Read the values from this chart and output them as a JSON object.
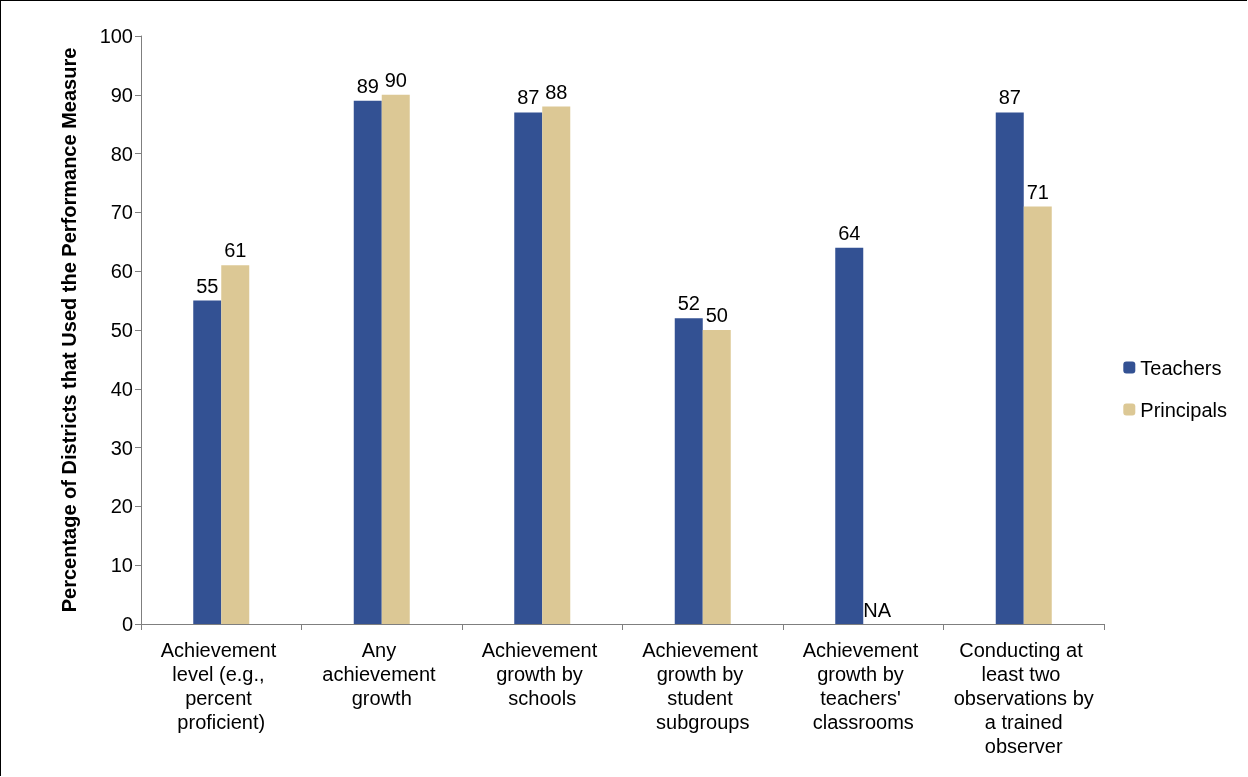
{
  "chart_data": {
    "type": "bar",
    "ylabel": "Percentage of Districts that Used the Performance Measure",
    "categories": [
      "Achievement level (e.g., percent proficient)",
      "Any achievement growth",
      "Achievement growth by schools",
      "Achievement growth by student subgroups",
      "Achievement growth by teachers' classrooms",
      "Conducting at least two observations by a trained observer"
    ],
    "series": [
      {
        "name": "Teachers",
        "color": "#335193",
        "values": [
          55,
          89,
          87,
          52,
          64,
          87
        ],
        "value_labels": [
          "55",
          "89",
          "87",
          "52",
          "64",
          "87"
        ]
      },
      {
        "name": "Principals",
        "color": "#dcc895",
        "values": [
          61,
          90,
          88,
          50,
          null,
          71
        ],
        "value_labels": [
          "61",
          "90",
          "88",
          "50",
          "NA",
          "71"
        ]
      }
    ],
    "ylim": [
      0,
      100
    ],
    "yticks": [
      0,
      10,
      20,
      30,
      40,
      50,
      60,
      70,
      80,
      90,
      100
    ],
    "grid": false,
    "legend": "right"
  }
}
